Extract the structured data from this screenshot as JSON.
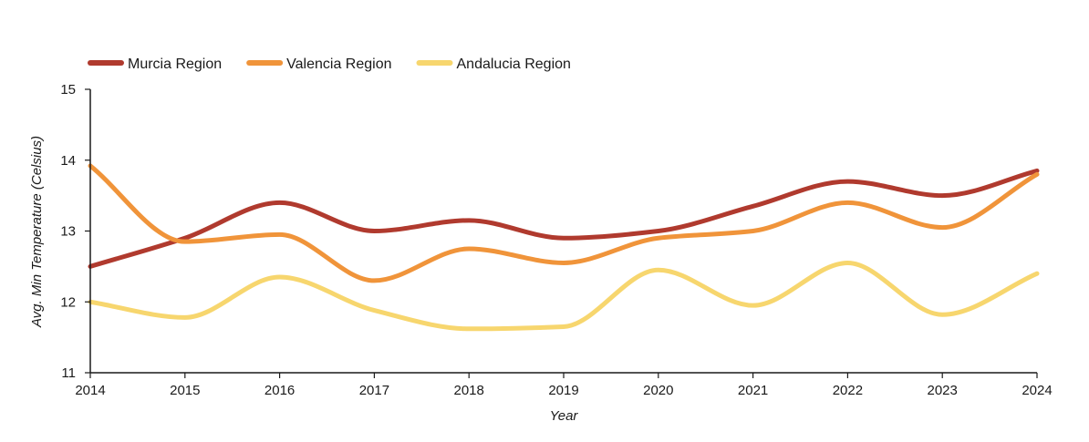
{
  "chart_data": {
    "type": "line",
    "title": "",
    "xlabel": "Year",
    "ylabel": "Avg. Min Temperature (Celsius)",
    "x": [
      "2014",
      "2015",
      "2016",
      "2017",
      "2018",
      "2019",
      "2020",
      "2021",
      "2022",
      "2023",
      "2024"
    ],
    "y_ticks": [
      11,
      12,
      13,
      14,
      15
    ],
    "ylim": [
      11,
      15
    ],
    "grid": false,
    "legend_position": "top-left",
    "line_style": "smooth",
    "series": [
      {
        "name": "Murcia Region",
        "color": "#b03a2e",
        "values": [
          12.5,
          12.9,
          13.4,
          13.0,
          13.15,
          12.9,
          13.0,
          13.35,
          13.7,
          13.5,
          13.85
        ]
      },
      {
        "name": "Valencia Region",
        "color": "#f0943a",
        "values": [
          13.92,
          12.85,
          12.95,
          12.3,
          12.75,
          12.55,
          12.9,
          13.0,
          13.4,
          13.05,
          13.8
        ]
      },
      {
        "name": "Andalucia Region",
        "color": "#f7d66e",
        "values": [
          12.0,
          11.78,
          12.35,
          11.88,
          11.62,
          11.65,
          12.45,
          11.95,
          12.55,
          11.82,
          12.4
        ]
      }
    ]
  }
}
